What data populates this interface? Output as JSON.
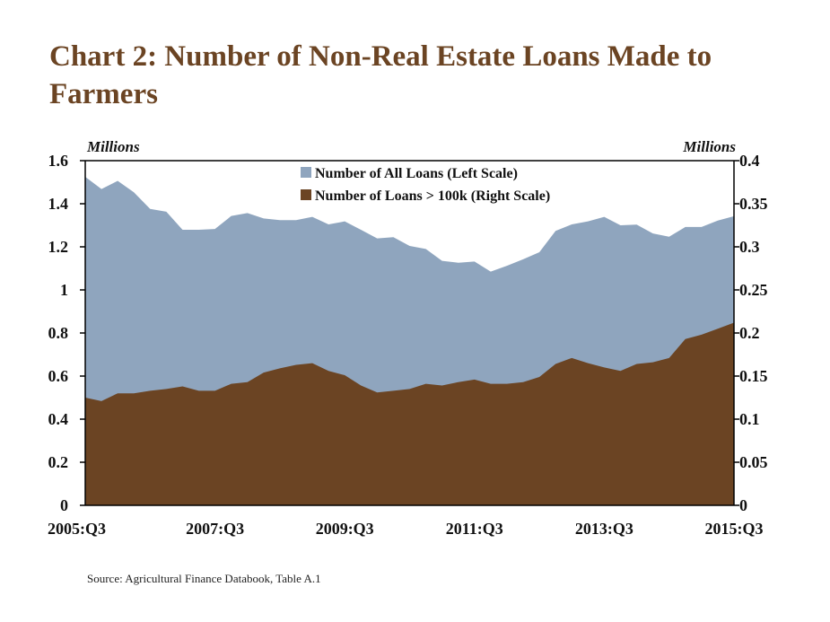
{
  "chart_data": {
    "type": "area",
    "title": "Chart 2: Number of Non-Real Estate Loans Made to Farmers",
    "source": "Source: Agricultural Finance Databook, Table A.1",
    "left_unit": "Millions",
    "right_unit": "Millions",
    "x_tick_labels": [
      "2005:Q3",
      "2007:Q3",
      "2009:Q3",
      "2011:Q3",
      "2013:Q3",
      "2015:Q3"
    ],
    "x_start": "2005:Q3",
    "x_end": "2015:Q3",
    "left_ylim": [
      0,
      1.6
    ],
    "left_ticks": [
      "0",
      "0.2",
      "0.4",
      "0.6",
      "0.8",
      "1",
      "1.2",
      "1.4",
      "1.6"
    ],
    "right_ylim": [
      0,
      0.4
    ],
    "right_ticks": [
      "0",
      "0.05",
      "0.1",
      "0.15",
      "0.2",
      "0.25",
      "0.3",
      "0.35",
      "0.4"
    ],
    "legend_position": "top-center",
    "series": [
      {
        "name": "Number of All Loans (Left Scale)",
        "axis": "left",
        "color": "#8fa5be",
        "values": [
          1.525,
          1.468,
          1.506,
          1.453,
          1.376,
          1.363,
          1.279,
          1.279,
          1.283,
          1.343,
          1.357,
          1.332,
          1.324,
          1.324,
          1.339,
          1.304,
          1.318,
          1.279,
          1.239,
          1.245,
          1.204,
          1.19,
          1.135,
          1.126,
          1.132,
          1.085,
          1.112,
          1.142,
          1.175,
          1.274,
          1.304,
          1.318,
          1.339,
          1.3,
          1.303,
          1.262,
          1.247,
          1.292,
          1.292,
          1.322,
          1.342
        ]
      },
      {
        "name": "Number of Loans > 100k (Right Scale)",
        "axis": "right",
        "color": "#6b4423",
        "values": [
          0.125,
          0.121,
          0.13,
          0.13,
          0.133,
          0.135,
          0.138,
          0.133,
          0.133,
          0.141,
          0.143,
          0.154,
          0.159,
          0.163,
          0.165,
          0.156,
          0.151,
          0.139,
          0.131,
          0.133,
          0.135,
          0.141,
          0.139,
          0.143,
          0.146,
          0.141,
          0.141,
          0.143,
          0.149,
          0.164,
          0.171,
          0.165,
          0.16,
          0.156,
          0.164,
          0.166,
          0.171,
          0.193,
          0.198,
          0.205,
          0.212
        ]
      }
    ]
  }
}
